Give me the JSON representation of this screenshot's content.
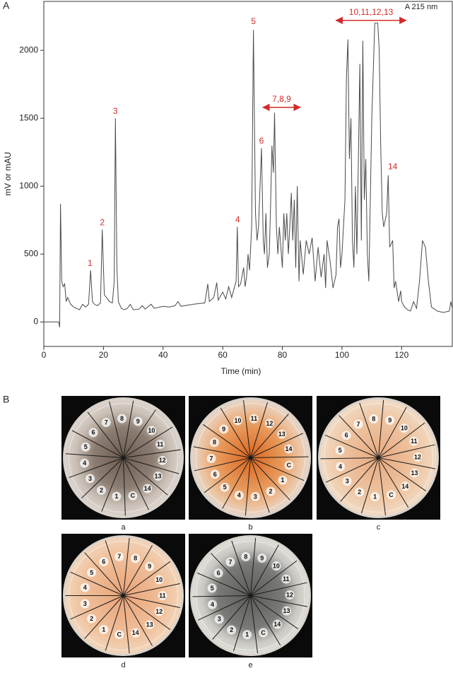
{
  "chart_data": {
    "type": "line",
    "panel_label": "A",
    "annotation": "A 215 nm",
    "xlabel": "Time (min)",
    "ylabel": "mV or mAU",
    "x": [
      0,
      5,
      5.3,
      5.6,
      6,
      6.5,
      7,
      7.5,
      8,
      9,
      10,
      11,
      12,
      13,
      14,
      15,
      15.7,
      16.3,
      17,
      18,
      19,
      19.6,
      20.3,
      21,
      22,
      23,
      23.6,
      24,
      24.5,
      25,
      26,
      27,
      28,
      29,
      30,
      32,
      33,
      34,
      36,
      37,
      40,
      42,
      44,
      45,
      46,
      50,
      54,
      55,
      55.5,
      57,
      58,
      58.5,
      60,
      61,
      62,
      63,
      64.5,
      64.9,
      65.3,
      66,
      67,
      67.5,
      68,
      68.5,
      69,
      69.7,
      70.3,
      71,
      71.5,
      72,
      73,
      73.6,
      74,
      74.5,
      75,
      75.6,
      76,
      76.5,
      77,
      77.4,
      78,
      78.5,
      79,
      80,
      80.5,
      81,
      81.5,
      82,
      82.5,
      83,
      83.5,
      84,
      84.5,
      85,
      85.6,
      86,
      87,
      88,
      89,
      90,
      91,
      92,
      93,
      94,
      94.5,
      95,
      96,
      97,
      98,
      98.5,
      99,
      99.5,
      100,
      101,
      101.5,
      102,
      102.5,
      103,
      103.5,
      104,
      104.5,
      105,
      106,
      106.5,
      107,
      107.5,
      108,
      108.5,
      109,
      110,
      111,
      112,
      112.5,
      113,
      113.5,
      114,
      115,
      115.5,
      116,
      117,
      117.5,
      118,
      119,
      119.7,
      120,
      121,
      122,
      123,
      124,
      125,
      126,
      127,
      128,
      129,
      130,
      132,
      134,
      136,
      136.5,
      137
    ],
    "series": [
      {
        "color": "#4a4a4a",
        "values": [
          0,
          0,
          -40,
          870,
          300,
          260,
          280,
          150,
          180,
          130,
          110,
          100,
          90,
          130,
          110,
          130,
          380,
          150,
          130,
          120,
          140,
          680,
          200,
          180,
          150,
          140,
          300,
          1500,
          400,
          150,
          100,
          90,
          100,
          130,
          90,
          95,
          120,
          95,
          130,
          100,
          115,
          110,
          120,
          150,
          115,
          130,
          140,
          280,
          150,
          180,
          290,
          160,
          220,
          170,
          260,
          180,
          300,
          700,
          260,
          280,
          400,
          260,
          330,
          500,
          380,
          700,
          2150,
          800,
          600,
          700,
          1280,
          600,
          500,
          800,
          400,
          500,
          800,
          1300,
          1100,
          1540,
          700,
          500,
          700,
          400,
          800,
          600,
          800,
          500,
          700,
          950,
          600,
          900,
          400,
          1000,
          300,
          600,
          350,
          600,
          500,
          620,
          300,
          550,
          330,
          500,
          250,
          600,
          450,
          250,
          350,
          700,
          760,
          400,
          500,
          900,
          1800,
          2080,
          1200,
          1500,
          600,
          400,
          1000,
          500,
          1900,
          600,
          2070,
          900,
          1200,
          500,
          300,
          1500,
          2200,
          2200,
          2000,
          1300,
          800,
          700,
          800,
          1080,
          550,
          600,
          250,
          300,
          150,
          230,
          150,
          110,
          90,
          80,
          150,
          100,
          300,
          600,
          550,
          300,
          110,
          80,
          70,
          80,
          150,
          100
        ]
      }
    ],
    "xlim": [
      0,
      137
    ],
    "ylim": [
      -180,
      2360
    ],
    "xticks": [
      0,
      20,
      40,
      60,
      80,
      100,
      120
    ],
    "yticks": [
      0,
      500,
      1000,
      1500,
      2000
    ],
    "peak_labels": [
      "1",
      "2",
      "3",
      "4",
      "5",
      "6",
      "14"
    ],
    "range_labels": [
      "7,8,9",
      "10,11,12,13"
    ]
  },
  "panel_b": {
    "label": "B",
    "plates": [
      {
        "caption": "a",
        "labels": [
          "1",
          "2",
          "3",
          "4",
          "5",
          "6",
          "7",
          "8",
          "9",
          "10",
          "11",
          "12",
          "13",
          "14",
          "C"
        ]
      },
      {
        "caption": "b",
        "labels": [
          "1",
          "2",
          "3",
          "4",
          "5",
          "6",
          "7",
          "8",
          "9",
          "10",
          "11",
          "12",
          "13",
          "14",
          "C"
        ]
      },
      {
        "caption": "c",
        "labels": [
          "1",
          "2",
          "3",
          "4",
          "5",
          "6",
          "7",
          "8",
          "9",
          "10",
          "11",
          "12",
          "13",
          "14",
          "C"
        ]
      },
      {
        "caption": "d",
        "labels": [
          "1",
          "2",
          "3",
          "4",
          "5",
          "6",
          "7",
          "8",
          "9",
          "10",
          "11",
          "12",
          "13",
          "14",
          "C"
        ]
      },
      {
        "caption": "e",
        "labels": [
          "1",
          "2",
          "3",
          "4",
          "5",
          "6",
          "7",
          "8",
          "9",
          "10",
          "11",
          "12",
          "13",
          "14",
          "C"
        ]
      }
    ]
  }
}
